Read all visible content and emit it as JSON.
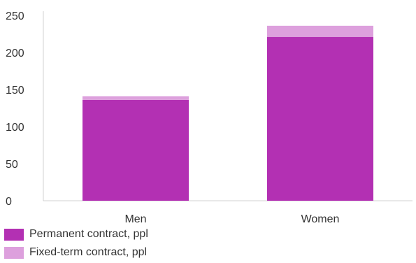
{
  "chart_data": {
    "type": "bar",
    "stacked": true,
    "categories": [
      "Men",
      "Women"
    ],
    "series": [
      {
        "name": "Permanent contract, ppl",
        "values": [
          136,
          221
        ],
        "color": "#b330b3"
      },
      {
        "name": "Fixed-term contract, ppl",
        "values": [
          5,
          15
        ],
        "color": "#dda0dd"
      }
    ],
    "ylim": [
      0,
      250
    ],
    "yticks": [
      0,
      50,
      100,
      150,
      200,
      250
    ],
    "grid": false,
    "legend_position": "bottom-left"
  }
}
